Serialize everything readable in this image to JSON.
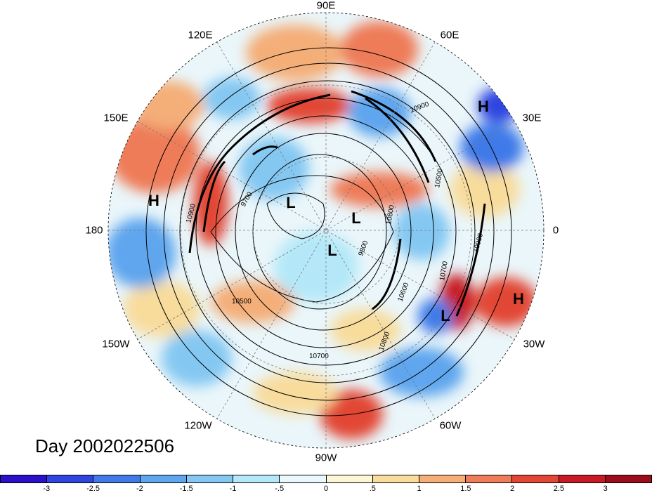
{
  "title": "Day 2002022506",
  "longitude_labels": [
    "90E",
    "60E",
    "30E",
    "0",
    "30W",
    "60W",
    "90W",
    "120W",
    "150W",
    "180",
    "150E",
    "120E"
  ],
  "contour_labels": [
    "10900",
    "10500",
    "10700",
    "10800",
    "10600",
    "9700",
    "9800",
    "10900",
    "10700",
    "10500",
    "10800",
    "10900"
  ],
  "pressure_centers": [
    {
      "label": "H"
    },
    {
      "label": "H"
    },
    {
      "label": "H"
    },
    {
      "label": "L"
    },
    {
      "label": "L"
    },
    {
      "label": "L"
    },
    {
      "label": "L"
    }
  ],
  "colorbar": {
    "tick_labels": [
      "-3",
      "-2.5",
      "-2",
      "-1.5",
      "-1",
      "-.5",
      "0",
      ".5",
      "1",
      "1.5",
      "2",
      "2.5",
      "3"
    ],
    "colors": [
      "#2a10c8",
      "#2f45e0",
      "#3f7ae8",
      "#5ea6ee",
      "#84c8f2",
      "#b4e8f8",
      "#e8f8fc",
      "#fcf6d4",
      "#f8dc9c",
      "#f4ae78",
      "#ee7c58",
      "#e24636",
      "#c81a24",
      "#9c0c1c"
    ]
  }
}
